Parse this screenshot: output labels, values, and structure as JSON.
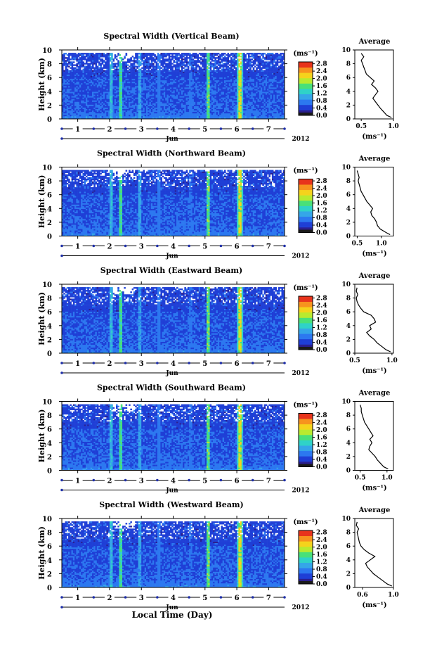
{
  "figure": {
    "xaxis_title": "Local Time (Day)",
    "time_label": "Jun",
    "year_label": "2012",
    "unit_label": "(ms⁻¹)",
    "avg_title": "Average",
    "colors": {
      "scale": [
        "#2a1f8f",
        "#1f3fd6",
        "#2c78f0",
        "#35a6e8",
        "#2fd2c8",
        "#49e079",
        "#b9ea2f",
        "#f5d31c",
        "#f7931e",
        "#e8341c"
      ],
      "gap": "#ffffff",
      "bar_bottom": "#1a1a1a",
      "time_marker": "#1f2fa8"
    }
  },
  "chart_data": [
    {
      "type": "heatmap",
      "title": "Spectral Width (Vertical Beam)",
      "ylabel": "Height (km)",
      "x": {
        "days": [
          "1",
          "2",
          "3",
          "4",
          "5",
          "6",
          "7"
        ],
        "range": [
          0.5,
          7.5
        ]
      },
      "y": {
        "ticks": [
          0,
          2,
          4,
          6,
          8,
          10
        ],
        "range": [
          0,
          10
        ]
      },
      "colorbar": {
        "ticks": [
          "0.0",
          "0.4",
          "0.8",
          "1.2",
          "1.6",
          "2.0",
          "2.4",
          "2.8"
        ],
        "range": [
          0,
          2.9
        ]
      },
      "average": {
        "xticks": [
          "0.5",
          "1.0"
        ],
        "xrange": [
          0.4,
          1.0
        ],
        "xlabel": "(ms⁻¹)",
        "y": [
          0.2,
          0.5,
          1,
          1.5,
          2,
          2.5,
          3,
          3.5,
          4,
          4.5,
          5,
          5.5,
          6,
          6.5,
          7,
          7.5,
          8,
          8.5,
          9,
          9.5
        ],
        "values": [
          0.97,
          0.9,
          0.85,
          0.8,
          0.76,
          0.72,
          0.68,
          0.72,
          0.76,
          0.72,
          0.66,
          0.7,
          0.64,
          0.58,
          0.56,
          0.54,
          0.52,
          0.5,
          0.54,
          0.5
        ]
      }
    },
    {
      "type": "heatmap",
      "title": "Spectral Width (Northward Beam)",
      "ylabel": "Height (km)",
      "x": {
        "days": [
          "1",
          "2",
          "3",
          "4",
          "5",
          "6",
          "7"
        ],
        "range": [
          0.5,
          7.5
        ]
      },
      "y": {
        "ticks": [
          0,
          2,
          4,
          6,
          8,
          10
        ],
        "range": [
          0,
          10
        ]
      },
      "colorbar": {
        "ticks": [
          "0.0",
          "0.4",
          "0.8",
          "1.2",
          "1.6",
          "2.0",
          "2.4",
          "2.8"
        ],
        "range": [
          0,
          2.9
        ]
      },
      "average": {
        "xticks": [
          "0.5",
          "1.0"
        ],
        "xrange": [
          0.45,
          1.25
        ],
        "xlabel": "(ms⁻¹)",
        "y": [
          0.2,
          0.5,
          1,
          1.5,
          2,
          2.5,
          3,
          3.5,
          4,
          4.5,
          5,
          5.5,
          6,
          6.5,
          7,
          7.5,
          8,
          8.5,
          9,
          9.5
        ],
        "values": [
          1.18,
          1.1,
          0.98,
          0.92,
          0.9,
          0.86,
          0.8,
          0.78,
          0.82,
          0.76,
          0.7,
          0.66,
          0.62,
          0.58,
          0.56,
          0.54,
          0.52,
          0.54,
          0.52,
          0.5
        ]
      }
    },
    {
      "type": "heatmap",
      "title": "Spectral Width (Eastward Beam)",
      "ylabel": "Height (km)",
      "x": {
        "days": [
          "1",
          "2",
          "3",
          "4",
          "5",
          "6",
          "7"
        ],
        "range": [
          0.5,
          7.5
        ]
      },
      "y": {
        "ticks": [
          0,
          2,
          4,
          6,
          8,
          10
        ],
        "range": [
          0,
          10
        ]
      },
      "colorbar": {
        "ticks": [
          "0.0",
          "0.4",
          "0.8",
          "1.2",
          "1.6",
          "2.0",
          "2.4",
          "2.8"
        ],
        "range": [
          0,
          2.9
        ]
      },
      "average": {
        "xticks": [
          "0.5",
          "1.0"
        ],
        "xrange": [
          0.5,
          1.02
        ],
        "xlabel": "(ms⁻¹)",
        "y": [
          0.2,
          0.5,
          1,
          1.5,
          2,
          2.5,
          3,
          3.5,
          4,
          4.5,
          5,
          5.5,
          6,
          6.5,
          7,
          7.5,
          8,
          8.5,
          9,
          9.5
        ],
        "values": [
          0.98,
          0.92,
          0.86,
          0.8,
          0.76,
          0.7,
          0.66,
          0.72,
          0.7,
          0.78,
          0.76,
          0.72,
          0.62,
          0.58,
          0.55,
          0.53,
          0.52,
          0.54,
          0.52,
          0.53
        ]
      }
    },
    {
      "type": "heatmap",
      "title": "Spectral Width (Southward Beam)",
      "ylabel": "Height (km)",
      "x": {
        "days": [
          "1",
          "2",
          "3",
          "4",
          "5",
          "6",
          "7"
        ],
        "range": [
          0.5,
          7.5
        ]
      },
      "y": {
        "ticks": [
          0,
          2,
          4,
          6,
          8,
          10
        ],
        "range": [
          0,
          10
        ]
      },
      "colorbar": {
        "ticks": [
          "0.0",
          "0.4",
          "0.8",
          "1.2",
          "1.6",
          "2.0",
          "2.4",
          "2.8"
        ],
        "range": [
          0,
          2.9
        ]
      },
      "average": {
        "xticks": [
          "0.5",
          "1.0"
        ],
        "xrange": [
          0.4,
          1.12
        ],
        "xlabel": "(ms⁻¹)",
        "y": [
          0.2,
          0.5,
          1,
          1.5,
          2,
          2.5,
          3,
          3.5,
          4,
          4.5,
          5,
          5.5,
          6,
          6.5,
          7,
          7.5,
          8,
          8.5,
          9,
          9.5
        ],
        "values": [
          1.02,
          0.94,
          0.88,
          0.82,
          0.78,
          0.72,
          0.66,
          0.68,
          0.72,
          0.68,
          0.74,
          0.7,
          0.66,
          0.62,
          0.58,
          0.56,
          0.54,
          0.52,
          0.52,
          0.5
        ]
      }
    },
    {
      "type": "heatmap",
      "title": "Spectral Width (Westward Beam)",
      "ylabel": "Height (km)",
      "x": {
        "days": [
          "1",
          "2",
          "3",
          "4",
          "5",
          "6",
          "7"
        ],
        "range": [
          0.5,
          7.5
        ]
      },
      "y": {
        "ticks": [
          0,
          2,
          4,
          6,
          8,
          10
        ],
        "range": [
          0,
          10
        ]
      },
      "colorbar": {
        "ticks": [
          "0.0",
          "0.4",
          "0.8",
          "1.2",
          "1.6",
          "2.0",
          "2.4",
          "2.8"
        ],
        "range": [
          0,
          2.9
        ]
      },
      "average": {
        "xticks": [
          "0.6",
          "1.0"
        ],
        "xrange": [
          0.5,
          1.0
        ],
        "xlabel": "(ms⁻¹)",
        "y": [
          0.2,
          0.5,
          1,
          1.5,
          2,
          2.5,
          3,
          3.5,
          4,
          4.5,
          5,
          5.5,
          6,
          6.5,
          7,
          7.5,
          8,
          8.5,
          9,
          9.5
        ],
        "values": [
          0.98,
          0.92,
          0.86,
          0.8,
          0.74,
          0.7,
          0.66,
          0.64,
          0.7,
          0.76,
          0.68,
          0.62,
          0.58,
          0.56,
          0.55,
          0.54,
          0.53,
          0.55,
          0.52,
          0.53
        ]
      }
    }
  ]
}
